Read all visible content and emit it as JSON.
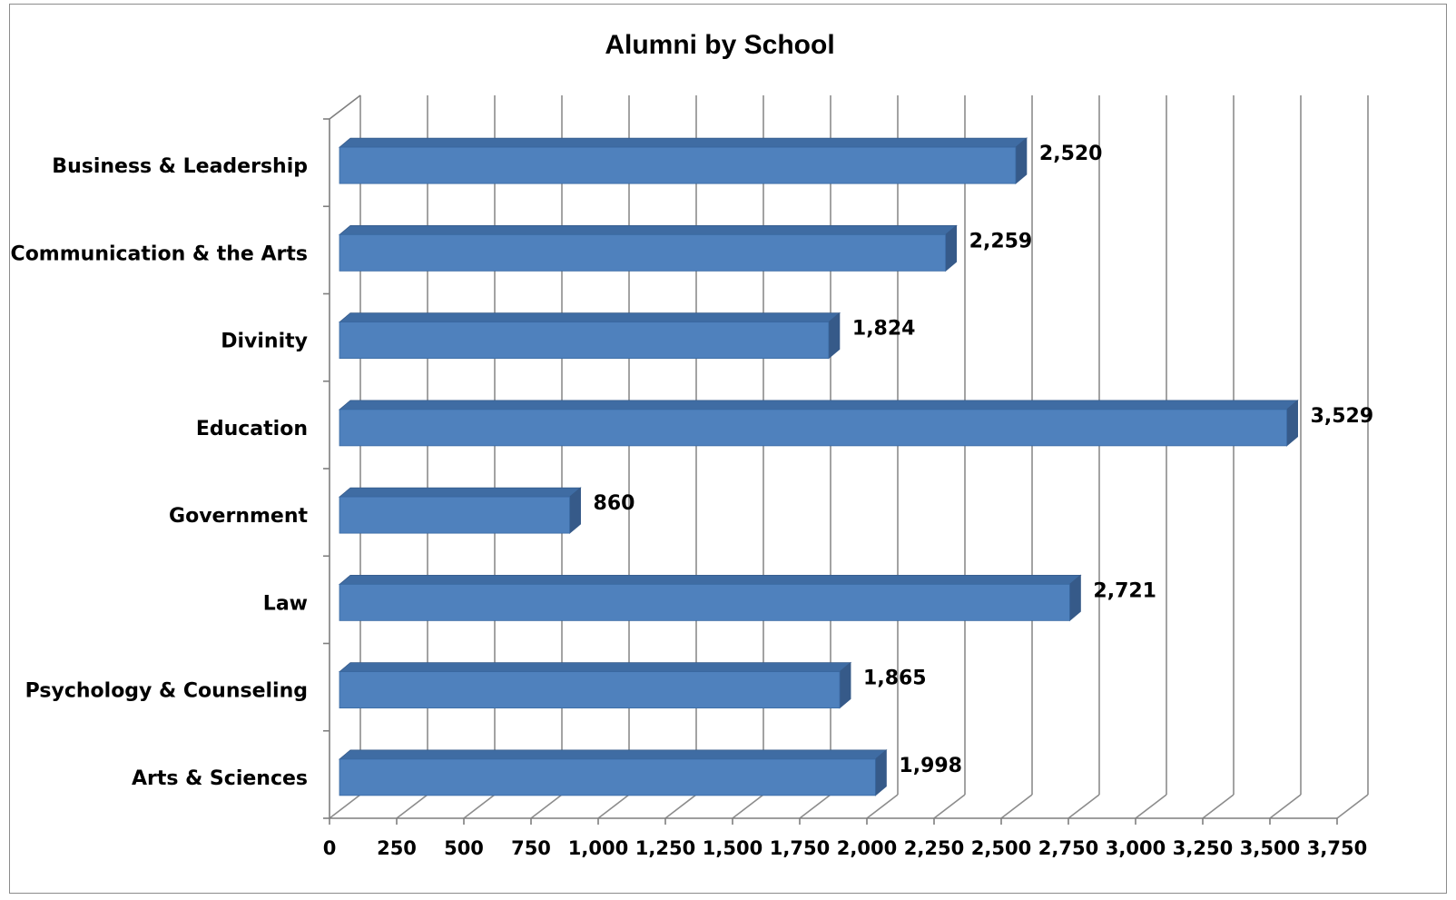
{
  "chart_data": {
    "type": "bar",
    "orientation": "horizontal",
    "style": "3d",
    "title": "Alumni by School",
    "categories": [
      "Business & Leadership",
      "Communication & the Arts",
      "Divinity",
      "Education",
      "Government",
      "Law",
      "Psychology & Counseling",
      "Arts & Sciences"
    ],
    "values": [
      2520,
      2259,
      1824,
      3529,
      860,
      2721,
      1865,
      1998
    ],
    "value_labels": [
      "2,520",
      "2,259",
      "1,824",
      "3,529",
      "860",
      "2,721",
      "1,865",
      "1,998"
    ],
    "xlim": [
      0,
      3750
    ],
    "xticks": [
      0,
      250,
      500,
      750,
      1000,
      1250,
      1500,
      1750,
      2000,
      2250,
      2500,
      2750,
      3000,
      3250,
      3500,
      3750
    ],
    "xtick_labels": [
      "0",
      "250",
      "500",
      "750",
      "1,000",
      "1,250",
      "1,500",
      "1,750",
      "2,000",
      "2,250",
      "2,500",
      "2,750",
      "3,000",
      "3,250",
      "3,500",
      "3,750"
    ],
    "xlabel": "",
    "ylabel": "",
    "grid": true,
    "legend": "none",
    "colors": {
      "bar_front": "#4f81bd",
      "bar_top": "#3f6ca3",
      "bar_side": "#365a89",
      "grid": "#8c8c8c",
      "axis": "#7f7f7f"
    }
  }
}
